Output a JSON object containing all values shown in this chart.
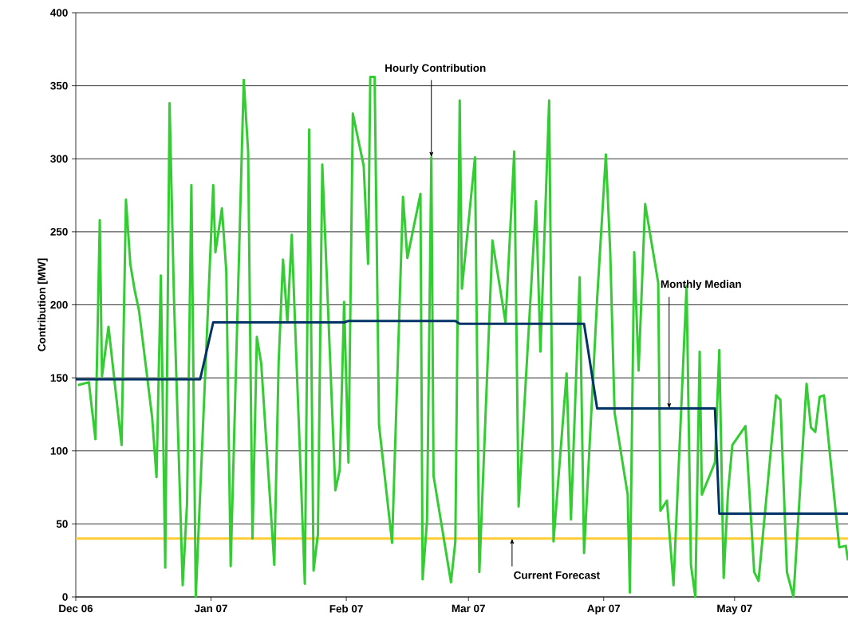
{
  "chart_data": {
    "type": "line",
    "ylabel": "Contribution [MW]",
    "xlim": [
      "2006-12-01",
      "2007-05-27"
    ],
    "xticks": [
      {
        "value": "2006-12-01",
        "label": "Dec 06"
      },
      {
        "value": "2007-01-01",
        "label": "Jan 07"
      },
      {
        "value": "2007-02-01",
        "label": "Feb 07"
      },
      {
        "value": "2007-03-01",
        "label": "Mar 07"
      },
      {
        "value": "2007-04-01",
        "label": "Apr 07"
      },
      {
        "value": "2007-05-01",
        "label": "May 07"
      }
    ],
    "ylim": [
      0,
      400
    ],
    "yticks": [
      0,
      50,
      100,
      150,
      200,
      250,
      300,
      350,
      400
    ],
    "grid": "y",
    "marker": "none",
    "line_style": "solid",
    "series": [
      {
        "color": "#33cc33",
        "x": [
          "2006-12-01T12:00",
          "2006-12-04",
          "2006-12-05T12:00",
          "2006-12-06T12:00",
          "2006-12-07",
          "2006-12-08T12:00",
          "2006-12-11T12:00",
          "2006-12-12T12:00",
          "2006-12-13T12:00",
          "2006-12-14T12:00",
          "2006-12-15T12:00",
          "2006-12-18T12:00",
          "2006-12-19T12:00",
          "2006-12-20T12:00",
          "2006-12-21T12:00",
          "2006-12-22T12:00",
          "2006-12-23T12:00",
          "2006-12-25T12:00",
          "2006-12-26T12:00",
          "2006-12-27T12:00",
          "2006-12-28T12:00",
          "2007-01-01T12:00",
          "2007-01-02",
          "2007-01-03T12:00",
          "2007-01-04T12:00",
          "2007-01-05T12:00",
          "2007-01-08T12:00",
          "2007-01-09T12:00",
          "2007-01-10T12:00",
          "2007-01-11T12:00",
          "2007-01-12T12:00",
          "2007-01-15T12:00",
          "2007-01-16T12:00",
          "2007-01-17T12:00",
          "2007-01-18T12:00",
          "2007-01-19T12:00",
          "2007-01-22T12:00",
          "2007-01-23T12:00",
          "2007-01-24T12:00",
          "2007-01-25T12:00",
          "2007-01-26T12:00",
          "2007-01-29T12:00",
          "2007-01-30T12:00",
          "2007-01-31T12:00",
          "2007-02-01T12:00",
          "2007-02-02T12:00",
          "2007-02-05",
          "2007-02-06",
          "2007-02-06T12:00",
          "2007-02-07T12:00",
          "2007-02-08T12:00",
          "2007-02-11T12:00",
          "2007-02-14",
          "2007-02-15",
          "2007-02-18",
          "2007-02-18T12:00",
          "2007-02-19T12:00",
          "2007-02-20T12:00",
          "2007-02-21",
          "2007-02-25",
          "2007-02-26",
          "2007-02-27",
          "2007-02-27T12:00",
          "2007-03-02T12:00",
          "2007-03-03T12:00",
          "2007-03-06T12:00",
          "2007-03-09T12:00",
          "2007-03-11T12:00",
          "2007-03-12T12:00",
          "2007-03-16T12:00",
          "2007-03-17T12:00",
          "2007-03-19T12:00",
          "2007-03-20T12:00",
          "2007-03-23T12:00",
          "2007-03-24T12:00",
          "2007-03-26T12:00",
          "2007-03-27T12:00",
          "2007-03-30T12:00",
          "2007-04-01T12:00",
          "2007-04-02T12:00",
          "2007-04-03T12:00",
          "2007-04-06T12:00",
          "2007-04-07",
          "2007-04-08",
          "2007-04-09",
          "2007-04-10T12:00",
          "2007-04-13T12:00",
          "2007-04-14",
          "2007-04-15T12:00",
          "2007-04-17",
          "2007-04-20",
          "2007-04-21",
          "2007-04-22",
          "2007-04-23",
          "2007-04-23T12:00",
          "2007-04-26T12:00",
          "2007-04-27T12:00",
          "2007-04-28T12:00",
          "2007-04-29T12:00",
          "2007-04-30T12:00",
          "2007-05-03T12:00",
          "2007-05-05T12:00",
          "2007-05-06T12:00",
          "2007-05-10T12:00",
          "2007-05-11T12:00",
          "2007-05-13",
          "2007-05-14T12:00",
          "2007-05-17T12:00",
          "2007-05-18T12:00",
          "2007-05-19T12:00",
          "2007-05-20T12:00",
          "2007-05-21T12:00",
          "2007-05-25",
          "2007-05-26T12:00",
          "2007-05-27"
        ],
        "values": [
          145,
          147,
          108,
          258,
          151,
          185,
          104,
          272,
          228,
          210,
          196,
          123,
          82,
          220,
          20,
          338,
          205,
          8,
          64,
          282,
          0,
          282,
          236,
          266,
          223,
          21,
          354,
          305,
          40,
          178,
          160,
          22,
          161,
          231,
          188,
          248,
          9,
          320,
          18,
          43,
          296,
          73,
          87,
          202,
          92,
          331,
          295,
          228,
          356,
          356,
          118,
          37,
          274,
          232,
          276,
          12,
          52,
          301,
          83,
          10,
          38,
          340,
          211,
          301,
          17,
          244,
          188,
          305,
          62,
          271,
          168,
          340,
          38,
          153,
          53,
          219,
          30,
          204,
          303,
          236,
          126,
          70,
          3,
          236,
          155,
          269,
          215,
          59,
          66,
          8,
          213,
          22,
          0,
          168,
          70,
          92,
          169,
          13,
          72,
          104,
          117,
          17,
          11,
          138,
          135,
          17,
          0,
          146,
          116,
          113,
          137,
          138,
          34,
          35,
          25
        ]
      },
      {
        "color": "#003366",
        "type": "line",
        "x": [
          "2006-12-01",
          "2006-12-29T12:00",
          "2007-01-01T12:00",
          "2007-01-31T12:00",
          "2007-02-01T12:00",
          "2007-02-26",
          "2007-02-27",
          "2007-03-27T12:00",
          "2007-03-30T12:00",
          "2007-04-26T12:00",
          "2007-04-27T12:00",
          "2007-05-27"
        ],
        "values": [
          149,
          149,
          188,
          188,
          189,
          189,
          187,
          187,
          129,
          129,
          57,
          57
        ]
      }
    ],
    "ref_lines": [
      {
        "axis": "y",
        "value": 40,
        "color": "#ffcc33"
      }
    ],
    "annotations": [
      {
        "text": "Hourly Contribution",
        "x": "2007-02-20T12:00",
        "y": 301
      },
      {
        "text": "Monthly Median",
        "x": "2007-04-16",
        "y": 129
      },
      {
        "text": "Current Forecast",
        "x": "2007-03-11",
        "y": 40
      }
    ]
  }
}
